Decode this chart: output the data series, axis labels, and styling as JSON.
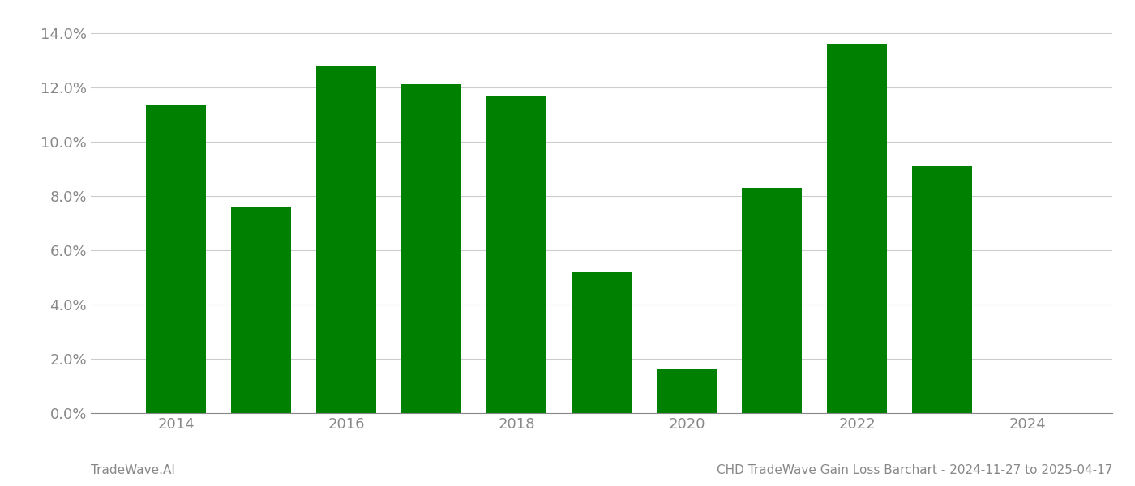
{
  "years": [
    2014,
    2015,
    2016,
    2017,
    2018,
    2019,
    2020,
    2021,
    2022,
    2023
  ],
  "values": [
    0.1135,
    0.076,
    0.128,
    0.121,
    0.117,
    0.052,
    0.016,
    0.083,
    0.136,
    0.091
  ],
  "bar_color": "#008000",
  "ylim": [
    0,
    0.145
  ],
  "yticks": [
    0.0,
    0.02,
    0.04,
    0.06,
    0.08,
    0.1,
    0.12,
    0.14
  ],
  "xticks": [
    2014,
    2016,
    2018,
    2020,
    2022,
    2024
  ],
  "xlim": [
    2013.0,
    2025.0
  ],
  "footer_left": "TradeWave.AI",
  "footer_right": "CHD TradeWave Gain Loss Barchart - 2024-11-27 to 2025-04-17",
  "background_color": "#ffffff",
  "grid_color": "#cccccc",
  "tick_label_color": "#888888",
  "footer_color": "#888888",
  "bar_width": 0.7,
  "tick_fontsize": 13,
  "footer_fontsize": 11
}
